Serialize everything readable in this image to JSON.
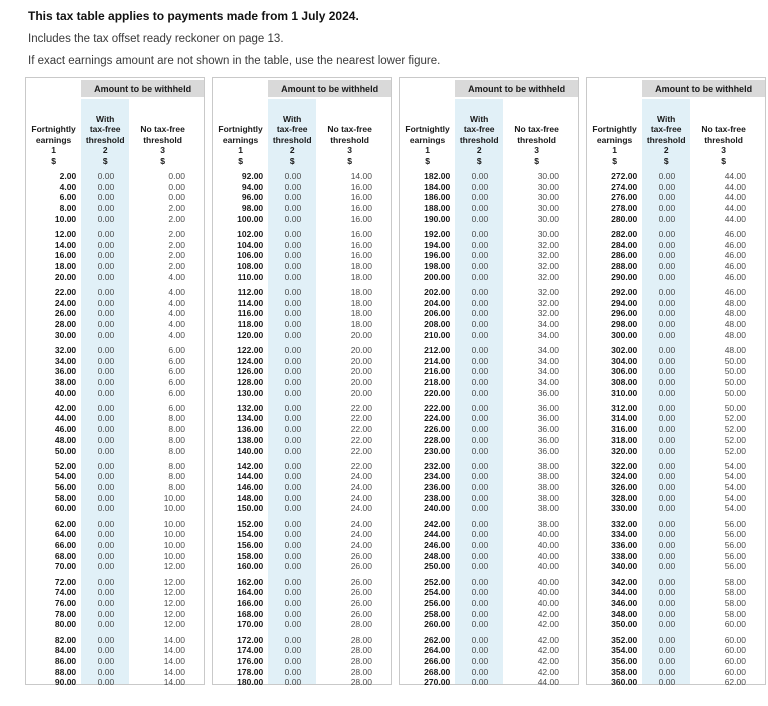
{
  "intro": {
    "title": "This tax table applies to payments made from 1 July 2024.",
    "line2": "Includes the tax offset ready reckoner on page 13.",
    "line3": "If exact earnings amount are not shown in the table, use the nearest lower figure."
  },
  "table": {
    "colors": {
      "highlight": "#e1f0f7",
      "header_bg": "#d9d9d9"
    },
    "headers": {
      "withheld": "Amount to be withheld",
      "columns": [
        {
          "label_lines": [
            "Fortnightly",
            "earnings"
          ],
          "num": "1",
          "unit": "$"
        },
        {
          "label_lines": [
            "With",
            "tax-free",
            "threshold"
          ],
          "num": "2",
          "unit": "$"
        },
        {
          "label_lines": [
            "No tax-free",
            "threshold"
          ],
          "num": "3",
          "unit": "$"
        }
      ]
    },
    "panels": [
      {
        "groups": [
          [
            [
              "2.00",
              "0.00",
              "0.00"
            ],
            [
              "4.00",
              "0.00",
              "0.00"
            ],
            [
              "6.00",
              "0.00",
              "0.00"
            ],
            [
              "8.00",
              "0.00",
              "2.00"
            ],
            [
              "10.00",
              "0.00",
              "2.00"
            ]
          ],
          [
            [
              "12.00",
              "0.00",
              "2.00"
            ],
            [
              "14.00",
              "0.00",
              "2.00"
            ],
            [
              "16.00",
              "0.00",
              "2.00"
            ],
            [
              "18.00",
              "0.00",
              "2.00"
            ],
            [
              "20.00",
              "0.00",
              "4.00"
            ]
          ],
          [
            [
              "22.00",
              "0.00",
              "4.00"
            ],
            [
              "24.00",
              "0.00",
              "4.00"
            ],
            [
              "26.00",
              "0.00",
              "4.00"
            ],
            [
              "28.00",
              "0.00",
              "4.00"
            ],
            [
              "30.00",
              "0.00",
              "4.00"
            ]
          ],
          [
            [
              "32.00",
              "0.00",
              "6.00"
            ],
            [
              "34.00",
              "0.00",
              "6.00"
            ],
            [
              "36.00",
              "0.00",
              "6.00"
            ],
            [
              "38.00",
              "0.00",
              "6.00"
            ],
            [
              "40.00",
              "0.00",
              "6.00"
            ]
          ],
          [
            [
              "42.00",
              "0.00",
              "6.00"
            ],
            [
              "44.00",
              "0.00",
              "8.00"
            ],
            [
              "46.00",
              "0.00",
              "8.00"
            ],
            [
              "48.00",
              "0.00",
              "8.00"
            ],
            [
              "50.00",
              "0.00",
              "8.00"
            ]
          ],
          [
            [
              "52.00",
              "0.00",
              "8.00"
            ],
            [
              "54.00",
              "0.00",
              "8.00"
            ],
            [
              "56.00",
              "0.00",
              "8.00"
            ],
            [
              "58.00",
              "0.00",
              "10.00"
            ],
            [
              "60.00",
              "0.00",
              "10.00"
            ]
          ],
          [
            [
              "62.00",
              "0.00",
              "10.00"
            ],
            [
              "64.00",
              "0.00",
              "10.00"
            ],
            [
              "66.00",
              "0.00",
              "10.00"
            ],
            [
              "68.00",
              "0.00",
              "10.00"
            ],
            [
              "70.00",
              "0.00",
              "12.00"
            ]
          ],
          [
            [
              "72.00",
              "0.00",
              "12.00"
            ],
            [
              "74.00",
              "0.00",
              "12.00"
            ],
            [
              "76.00",
              "0.00",
              "12.00"
            ],
            [
              "78.00",
              "0.00",
              "12.00"
            ],
            [
              "80.00",
              "0.00",
              "12.00"
            ]
          ],
          [
            [
              "82.00",
              "0.00",
              "14.00"
            ],
            [
              "84.00",
              "0.00",
              "14.00"
            ],
            [
              "86.00",
              "0.00",
              "14.00"
            ],
            [
              "88.00",
              "0.00",
              "14.00"
            ],
            [
              "90.00",
              "0.00",
              "14.00"
            ]
          ]
        ]
      },
      {
        "groups": [
          [
            [
              "92.00",
              "0.00",
              "14.00"
            ],
            [
              "94.00",
              "0.00",
              "16.00"
            ],
            [
              "96.00",
              "0.00",
              "16.00"
            ],
            [
              "98.00",
              "0.00",
              "16.00"
            ],
            [
              "100.00",
              "0.00",
              "16.00"
            ]
          ],
          [
            [
              "102.00",
              "0.00",
              "16.00"
            ],
            [
              "104.00",
              "0.00",
              "16.00"
            ],
            [
              "106.00",
              "0.00",
              "16.00"
            ],
            [
              "108.00",
              "0.00",
              "18.00"
            ],
            [
              "110.00",
              "0.00",
              "18.00"
            ]
          ],
          [
            [
              "112.00",
              "0.00",
              "18.00"
            ],
            [
              "114.00",
              "0.00",
              "18.00"
            ],
            [
              "116.00",
              "0.00",
              "18.00"
            ],
            [
              "118.00",
              "0.00",
              "18.00"
            ],
            [
              "120.00",
              "0.00",
              "20.00"
            ]
          ],
          [
            [
              "122.00",
              "0.00",
              "20.00"
            ],
            [
              "124.00",
              "0.00",
              "20.00"
            ],
            [
              "126.00",
              "0.00",
              "20.00"
            ],
            [
              "128.00",
              "0.00",
              "20.00"
            ],
            [
              "130.00",
              "0.00",
              "20.00"
            ]
          ],
          [
            [
              "132.00",
              "0.00",
              "22.00"
            ],
            [
              "134.00",
              "0.00",
              "22.00"
            ],
            [
              "136.00",
              "0.00",
              "22.00"
            ],
            [
              "138.00",
              "0.00",
              "22.00"
            ],
            [
              "140.00",
              "0.00",
              "22.00"
            ]
          ],
          [
            [
              "142.00",
              "0.00",
              "22.00"
            ],
            [
              "144.00",
              "0.00",
              "24.00"
            ],
            [
              "146.00",
              "0.00",
              "24.00"
            ],
            [
              "148.00",
              "0.00",
              "24.00"
            ],
            [
              "150.00",
              "0.00",
              "24.00"
            ]
          ],
          [
            [
              "152.00",
              "0.00",
              "24.00"
            ],
            [
              "154.00",
              "0.00",
              "24.00"
            ],
            [
              "156.00",
              "0.00",
              "24.00"
            ],
            [
              "158.00",
              "0.00",
              "26.00"
            ],
            [
              "160.00",
              "0.00",
              "26.00"
            ]
          ],
          [
            [
              "162.00",
              "0.00",
              "26.00"
            ],
            [
              "164.00",
              "0.00",
              "26.00"
            ],
            [
              "166.00",
              "0.00",
              "26.00"
            ],
            [
              "168.00",
              "0.00",
              "26.00"
            ],
            [
              "170.00",
              "0.00",
              "28.00"
            ]
          ],
          [
            [
              "172.00",
              "0.00",
              "28.00"
            ],
            [
              "174.00",
              "0.00",
              "28.00"
            ],
            [
              "176.00",
              "0.00",
              "28.00"
            ],
            [
              "178.00",
              "0.00",
              "28.00"
            ],
            [
              "180.00",
              "0.00",
              "28.00"
            ]
          ]
        ]
      },
      {
        "groups": [
          [
            [
              "182.00",
              "0.00",
              "30.00"
            ],
            [
              "184.00",
              "0.00",
              "30.00"
            ],
            [
              "186.00",
              "0.00",
              "30.00"
            ],
            [
              "188.00",
              "0.00",
              "30.00"
            ],
            [
              "190.00",
              "0.00",
              "30.00"
            ]
          ],
          [
            [
              "192.00",
              "0.00",
              "30.00"
            ],
            [
              "194.00",
              "0.00",
              "32.00"
            ],
            [
              "196.00",
              "0.00",
              "32.00"
            ],
            [
              "198.00",
              "0.00",
              "32.00"
            ],
            [
              "200.00",
              "0.00",
              "32.00"
            ]
          ],
          [
            [
              "202.00",
              "0.00",
              "32.00"
            ],
            [
              "204.00",
              "0.00",
              "32.00"
            ],
            [
              "206.00",
              "0.00",
              "32.00"
            ],
            [
              "208.00",
              "0.00",
              "34.00"
            ],
            [
              "210.00",
              "0.00",
              "34.00"
            ]
          ],
          [
            [
              "212.00",
              "0.00",
              "34.00"
            ],
            [
              "214.00",
              "0.00",
              "34.00"
            ],
            [
              "216.00",
              "0.00",
              "34.00"
            ],
            [
              "218.00",
              "0.00",
              "34.00"
            ],
            [
              "220.00",
              "0.00",
              "36.00"
            ]
          ],
          [
            [
              "222.00",
              "0.00",
              "36.00"
            ],
            [
              "224.00",
              "0.00",
              "36.00"
            ],
            [
              "226.00",
              "0.00",
              "36.00"
            ],
            [
              "228.00",
              "0.00",
              "36.00"
            ],
            [
              "230.00",
              "0.00",
              "36.00"
            ]
          ],
          [
            [
              "232.00",
              "0.00",
              "38.00"
            ],
            [
              "234.00",
              "0.00",
              "38.00"
            ],
            [
              "236.00",
              "0.00",
              "38.00"
            ],
            [
              "238.00",
              "0.00",
              "38.00"
            ],
            [
              "240.00",
              "0.00",
              "38.00"
            ]
          ],
          [
            [
              "242.00",
              "0.00",
              "38.00"
            ],
            [
              "244.00",
              "0.00",
              "40.00"
            ],
            [
              "246.00",
              "0.00",
              "40.00"
            ],
            [
              "248.00",
              "0.00",
              "40.00"
            ],
            [
              "250.00",
              "0.00",
              "40.00"
            ]
          ],
          [
            [
              "252.00",
              "0.00",
              "40.00"
            ],
            [
              "254.00",
              "0.00",
              "40.00"
            ],
            [
              "256.00",
              "0.00",
              "40.00"
            ],
            [
              "258.00",
              "0.00",
              "42.00"
            ],
            [
              "260.00",
              "0.00",
              "42.00"
            ]
          ],
          [
            [
              "262.00",
              "0.00",
              "42.00"
            ],
            [
              "264.00",
              "0.00",
              "42.00"
            ],
            [
              "266.00",
              "0.00",
              "42.00"
            ],
            [
              "268.00",
              "0.00",
              "42.00"
            ],
            [
              "270.00",
              "0.00",
              "44.00"
            ]
          ]
        ]
      },
      {
        "groups": [
          [
            [
              "272.00",
              "0.00",
              "44.00"
            ],
            [
              "274.00",
              "0.00",
              "44.00"
            ],
            [
              "276.00",
              "0.00",
              "44.00"
            ],
            [
              "278.00",
              "0.00",
              "44.00"
            ],
            [
              "280.00",
              "0.00",
              "44.00"
            ]
          ],
          [
            [
              "282.00",
              "0.00",
              "46.00"
            ],
            [
              "284.00",
              "0.00",
              "46.00"
            ],
            [
              "286.00",
              "0.00",
              "46.00"
            ],
            [
              "288.00",
              "0.00",
              "46.00"
            ],
            [
              "290.00",
              "0.00",
              "46.00"
            ]
          ],
          [
            [
              "292.00",
              "0.00",
              "46.00"
            ],
            [
              "294.00",
              "0.00",
              "48.00"
            ],
            [
              "296.00",
              "0.00",
              "48.00"
            ],
            [
              "298.00",
              "0.00",
              "48.00"
            ],
            [
              "300.00",
              "0.00",
              "48.00"
            ]
          ],
          [
            [
              "302.00",
              "0.00",
              "48.00"
            ],
            [
              "304.00",
              "0.00",
              "50.00"
            ],
            [
              "306.00",
              "0.00",
              "50.00"
            ],
            [
              "308.00",
              "0.00",
              "50.00"
            ],
            [
              "310.00",
              "0.00",
              "50.00"
            ]
          ],
          [
            [
              "312.00",
              "0.00",
              "50.00"
            ],
            [
              "314.00",
              "0.00",
              "52.00"
            ],
            [
              "316.00",
              "0.00",
              "52.00"
            ],
            [
              "318.00",
              "0.00",
              "52.00"
            ],
            [
              "320.00",
              "0.00",
              "52.00"
            ]
          ],
          [
            [
              "322.00",
              "0.00",
              "54.00"
            ],
            [
              "324.00",
              "0.00",
              "54.00"
            ],
            [
              "326.00",
              "0.00",
              "54.00"
            ],
            [
              "328.00",
              "0.00",
              "54.00"
            ],
            [
              "330.00",
              "0.00",
              "54.00"
            ]
          ],
          [
            [
              "332.00",
              "0.00",
              "56.00"
            ],
            [
              "334.00",
              "0.00",
              "56.00"
            ],
            [
              "336.00",
              "0.00",
              "56.00"
            ],
            [
              "338.00",
              "0.00",
              "56.00"
            ],
            [
              "340.00",
              "0.00",
              "56.00"
            ]
          ],
          [
            [
              "342.00",
              "0.00",
              "58.00"
            ],
            [
              "344.00",
              "0.00",
              "58.00"
            ],
            [
              "346.00",
              "0.00",
              "58.00"
            ],
            [
              "348.00",
              "0.00",
              "58.00"
            ],
            [
              "350.00",
              "0.00",
              "60.00"
            ]
          ],
          [
            [
              "352.00",
              "0.00",
              "60.00"
            ],
            [
              "354.00",
              "0.00",
              "60.00"
            ],
            [
              "356.00",
              "0.00",
              "60.00"
            ],
            [
              "358.00",
              "0.00",
              "60.00"
            ],
            [
              "360.00",
              "0.00",
              "62.00"
            ]
          ]
        ]
      }
    ]
  }
}
